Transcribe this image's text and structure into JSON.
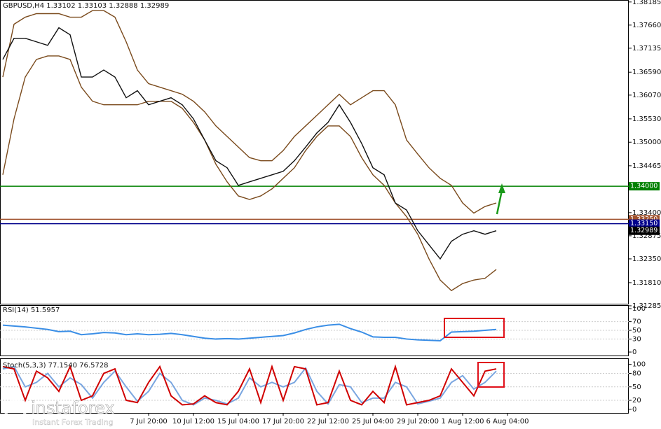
{
  "chart_data": [
    {
      "type": "line",
      "title": "GBPUSD,H4  1.33102 1.33103 1.32888 1.32989",
      "ylim": [
        1.313,
        1.3823
      ],
      "yticks": [
        {
          "value": 1.38185,
          "label": "1.38185"
        },
        {
          "value": 1.3766,
          "label": "1.37660"
        },
        {
          "value": 1.37135,
          "label": "1.37135"
        },
        {
          "value": 1.3659,
          "label": "1.36590"
        },
        {
          "value": 1.3607,
          "label": "1.36070"
        },
        {
          "value": 1.3553,
          "label": "1.35530"
        },
        {
          "value": 1.35,
          "label": "1.35000"
        },
        {
          "value": 1.34465,
          "label": "1.34465"
        },
        {
          "value": 1.334,
          "label": "1.33400"
        },
        {
          "value": 1.32875,
          "label": "1.32875"
        },
        {
          "value": 1.3235,
          "label": "1.32350"
        },
        {
          "value": 1.3181,
          "label": "1.31810"
        },
        {
          "value": 1.31285,
          "label": "1.31285"
        }
      ],
      "levels": [
        {
          "value": 1.34,
          "label": "1.34000",
          "color": "#008000"
        },
        {
          "value": 1.3325,
          "label": "1.33250",
          "color": "#a0522d"
        },
        {
          "value": 1.3315,
          "label": "1.33150",
          "color": "#00008b"
        },
        {
          "value": 1.32989,
          "label": "1.32989",
          "color": "#000000"
        }
      ],
      "series": [
        {
          "color": "#7a4a1c",
          "values": [
            1.3648,
            1.3768,
            1.3784,
            1.3792,
            1.3792,
            1.3792,
            1.3784,
            1.3784,
            1.3799,
            1.3799,
            1.3784,
            1.3728,
            1.3664,
            1.3633,
            1.3625,
            1.3617,
            1.3609,
            1.3593,
            1.3569,
            1.3537,
            1.3513,
            1.3489,
            1.3465,
            1.3458,
            1.3458,
            1.3481,
            1.3513,
            1.3537,
            1.3561,
            1.3585,
            1.3609,
            1.3585,
            1.3601,
            1.3617,
            1.3617,
            1.3585,
            1.3505,
            1.3473,
            1.3442,
            1.3418,
            1.3402,
            1.3362,
            1.3339,
            1.3354,
            1.3362,
            null
          ]
        },
        {
          "color": "#7a4a1c",
          "values": [
            1.3426,
            1.3553,
            1.3648,
            1.3688,
            1.3696,
            1.3696,
            1.3688,
            1.3625,
            1.3593,
            1.3585,
            1.3585,
            1.3585,
            1.3585,
            1.3593,
            1.3593,
            1.3593,
            1.3577,
            1.3545,
            1.3505,
            1.345,
            1.341,
            1.3378,
            1.337,
            1.3378,
            1.3394,
            1.3418,
            1.3442,
            1.3481,
            1.3513,
            1.3537,
            1.3537,
            1.3513,
            1.3465,
            1.3426,
            1.3402,
            1.3362,
            1.3331,
            1.3291,
            1.3235,
            1.3187,
            1.3163,
            1.3179,
            1.3187,
            1.3191,
            1.3211,
            null
          ]
        },
        {
          "color": "#111111",
          "values": [
            1.3688,
            1.3736,
            1.3736,
            1.3728,
            1.372,
            1.376,
            1.3744,
            1.3648,
            1.3648,
            1.3664,
            1.3648,
            1.3601,
            1.3617,
            1.3585,
            1.3593,
            1.3601,
            1.3585,
            1.3553,
            1.3505,
            1.3458,
            1.3442,
            1.3402,
            1.341,
            1.3418,
            1.3426,
            1.3434,
            1.3458,
            1.3489,
            1.3521,
            1.3545,
            1.3585,
            1.3545,
            1.3497,
            1.3442,
            1.3426,
            1.3362,
            1.3346,
            1.3299,
            1.3267,
            1.3235,
            1.3275,
            1.3291,
            1.3299,
            1.3291,
            1.3299,
            null
          ]
        }
      ]
    },
    {
      "type": "line",
      "title": "RSI(14) 51.5957",
      "ylim": [
        -8,
        106.5
      ],
      "yticks": [
        0,
        30,
        50,
        70,
        100
      ],
      "series": [
        {
          "color": "#3a8ee6",
          "values": [
            62,
            60,
            58,
            55,
            52,
            47,
            48,
            40,
            42,
            45,
            44,
            40,
            42,
            40,
            41,
            43,
            40,
            36,
            32,
            30,
            31,
            30,
            32,
            34,
            36,
            38,
            44,
            52,
            58,
            62,
            64,
            54,
            46,
            35,
            34,
            34,
            30,
            28,
            27,
            26,
            46,
            47,
            48,
            50,
            52,
            null
          ]
        }
      ]
    },
    {
      "type": "line",
      "title": "Stoch(5,3,3) 77.1540 76.5728",
      "ylim": [
        -8,
        112
      ],
      "yticks": [
        0,
        20,
        50,
        80,
        100
      ],
      "categories": [
        null,
        null,
        null,
        null,
        null,
        null,
        null,
        null,
        null,
        null,
        null,
        null,
        null,
        "7 Jul 20:00",
        null,
        null,
        null,
        "10 Jul 12:00",
        null,
        null,
        null,
        "15 Jul 04:00",
        null,
        null,
        null,
        "17 Jul 20:00",
        null,
        null,
        null,
        "22 Jul 12:00",
        null,
        null,
        null,
        "25 Jul 04:00",
        null,
        null,
        null,
        "29 Jul 20:00",
        null,
        null,
        null,
        "1 Aug 12:00",
        null,
        null,
        null,
        "6 Aug 04:00"
      ],
      "series": [
        {
          "color": "#7aa6e0",
          "values": [
            90,
            95,
            50,
            60,
            80,
            50,
            70,
            55,
            25,
            60,
            85,
            50,
            18,
            40,
            80,
            60,
            20,
            10,
            25,
            20,
            12,
            25,
            70,
            50,
            60,
            50,
            60,
            92,
            40,
            12,
            55,
            50,
            15,
            25,
            25,
            60,
            50,
            12,
            18,
            25,
            60,
            75,
            45,
            60,
            85,
            null
          ]
        },
        {
          "color": "#d00000",
          "values": [
            95,
            90,
            20,
            85,
            70,
            40,
            95,
            20,
            30,
            80,
            90,
            20,
            15,
            60,
            95,
            30,
            10,
            12,
            30,
            15,
            10,
            40,
            90,
            15,
            95,
            20,
            95,
            90,
            10,
            15,
            85,
            20,
            10,
            40,
            15,
            95,
            10,
            15,
            20,
            30,
            90,
            60,
            30,
            85,
            90,
            null
          ]
        }
      ]
    }
  ],
  "watermark": {
    "brand": "instaforex",
    "tagline": "Instant Forex Trading"
  }
}
